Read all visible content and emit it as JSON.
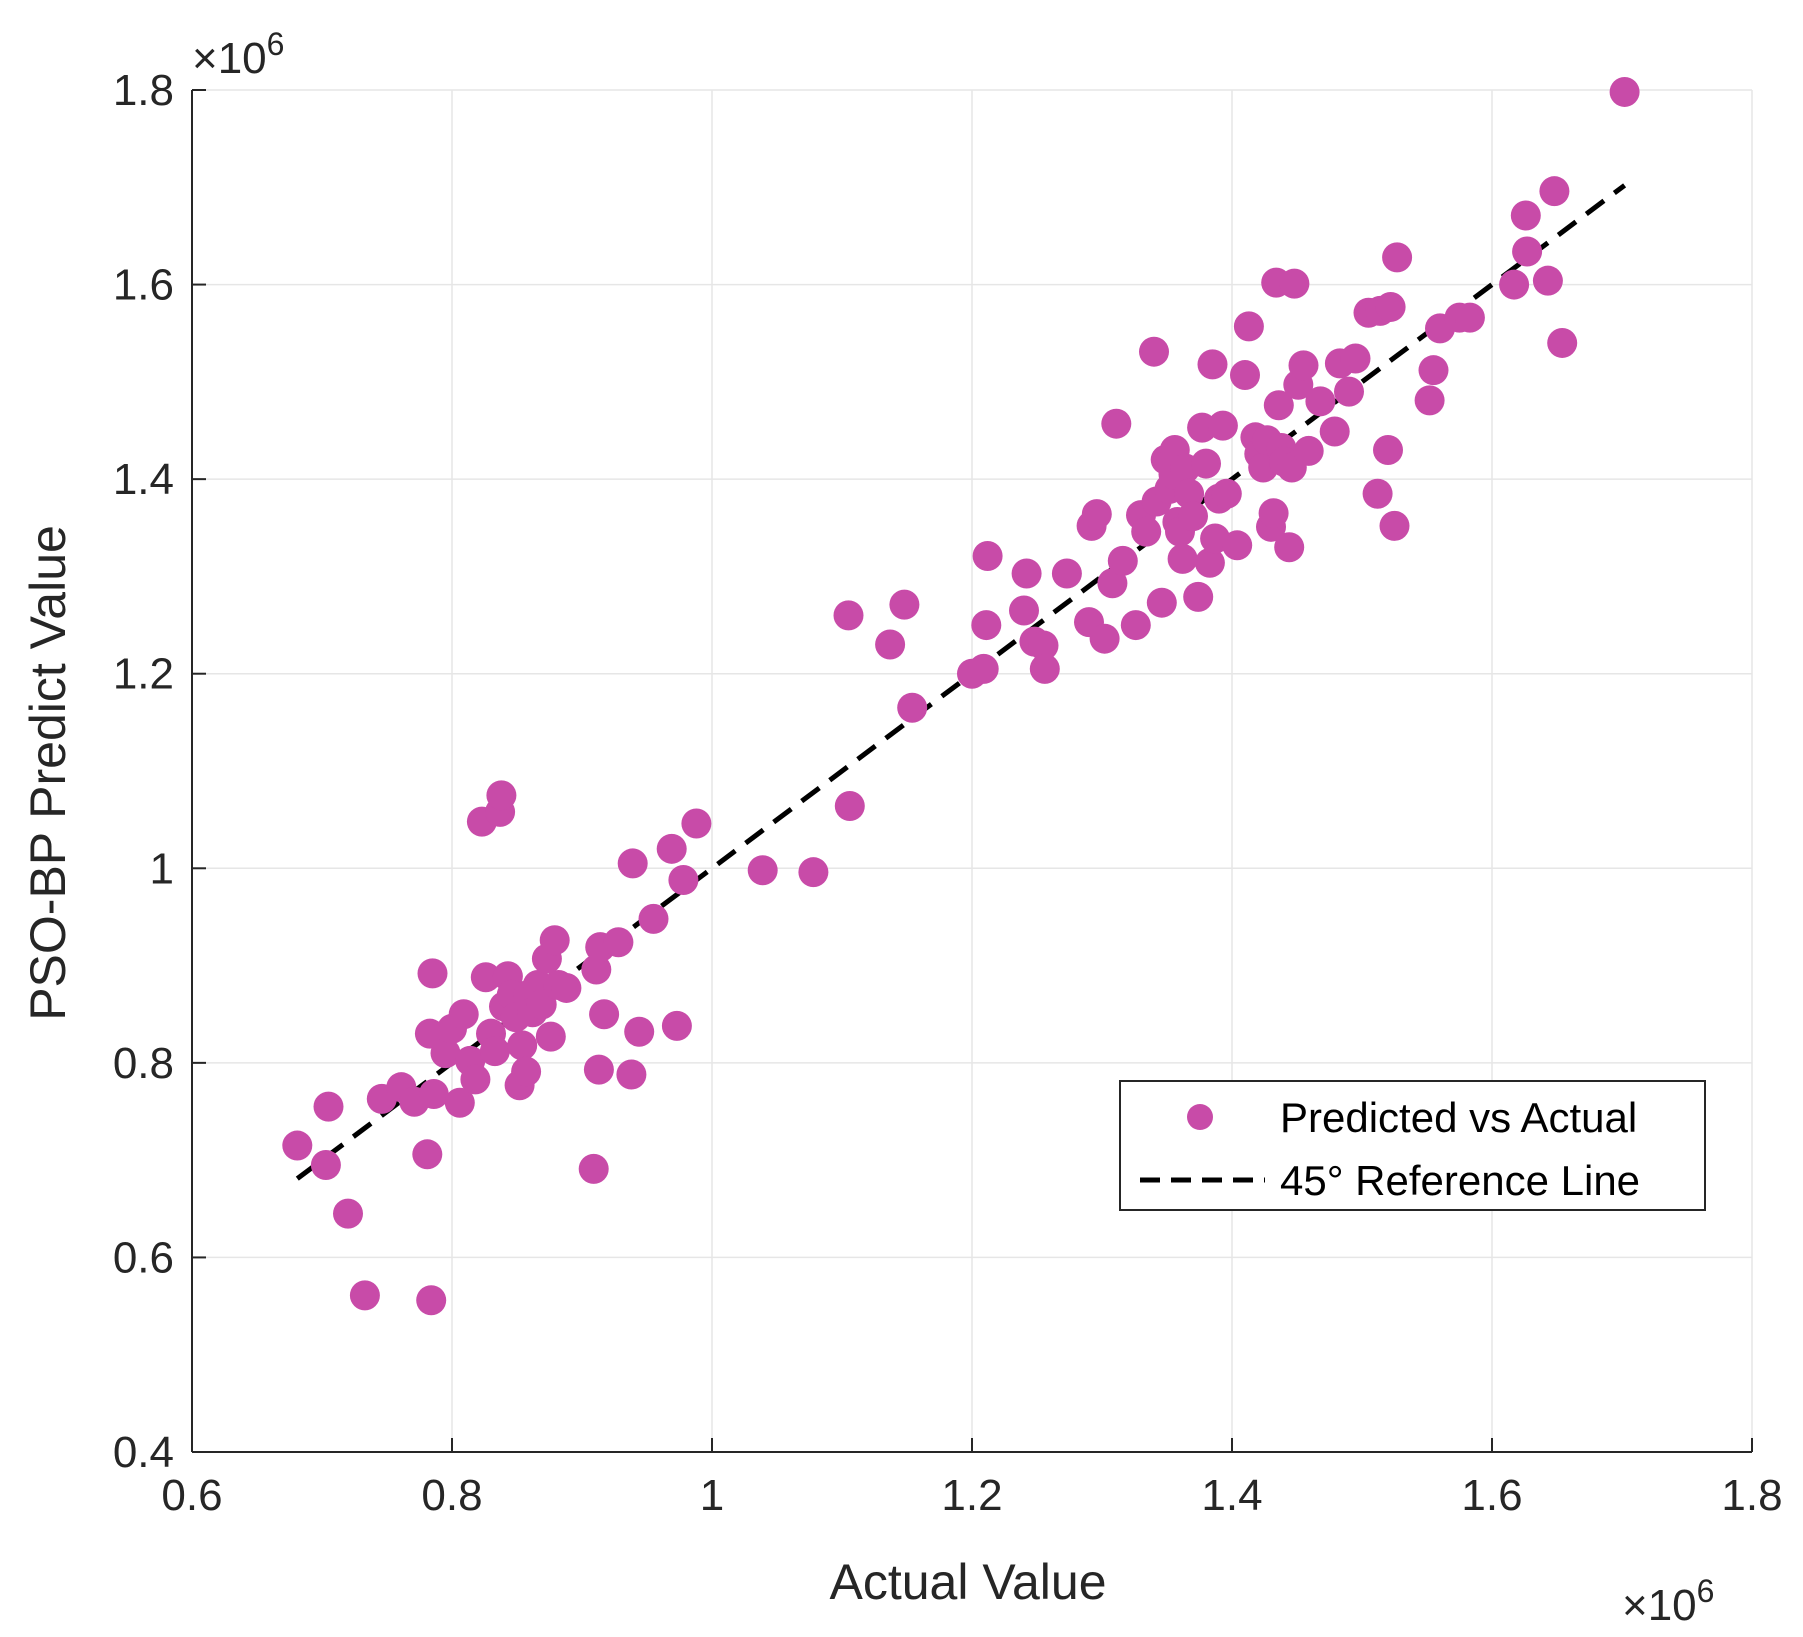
{
  "chart_data": {
    "type": "scatter",
    "title": "",
    "xlabel": "Actual Value",
    "ylabel": "PSO-BP Predict Value",
    "x_exponent": "×10",
    "x_exponent_power": "6",
    "y_exponent": "×10",
    "y_exponent_power": "6",
    "xlim": [
      0.6,
      1.8
    ],
    "ylim": [
      0.4,
      1.8
    ],
    "xticks": [
      0.6,
      0.8,
      1.0,
      1.2,
      1.4,
      1.6,
      1.8
    ],
    "xtick_labels": [
      "0.6",
      "0.8",
      "1",
      "1.2",
      "1.4",
      "1.6",
      "1.8"
    ],
    "yticks": [
      0.4,
      0.6,
      0.8,
      1.0,
      1.2,
      1.4,
      1.6,
      1.8
    ],
    "ytick_labels": [
      "0.4",
      "0.6",
      "0.8",
      "1",
      "1.2",
      "1.4",
      "1.6",
      "1.8"
    ],
    "grid": true,
    "legend_position": "bottom-right",
    "colors": {
      "points": "#C84BA8",
      "reference_line": "#000000",
      "grid": "#E6E6E6",
      "axes": "#262626"
    },
    "series": [
      {
        "name": "Predicted vs Actual",
        "kind": "scatter",
        "x": [
          0.681,
          0.705,
          0.703,
          0.72,
          0.733,
          0.746,
          0.761,
          0.771,
          0.781,
          0.783,
          0.784,
          0.785,
          0.786,
          0.795,
          0.8,
          0.806,
          0.809,
          0.814,
          0.818,
          0.823,
          0.826,
          0.83,
          0.833,
          0.837,
          0.838,
          0.84,
          0.843,
          0.846,
          0.849,
          0.852,
          0.854,
          0.857,
          0.859,
          0.862,
          0.866,
          0.869,
          0.873,
          0.876,
          0.879,
          0.882,
          0.888,
          0.909,
          0.911,
          0.913,
          0.914,
          0.917,
          0.928,
          0.938,
          0.939,
          0.944,
          0.955,
          0.969,
          0.973,
          0.978,
          0.988,
          1.039,
          1.078,
          1.105,
          1.106,
          1.137,
          1.148,
          1.154,
          1.2,
          1.209,
          1.211,
          1.212,
          1.24,
          1.242,
          1.248,
          1.255,
          1.256,
          1.273,
          1.29,
          1.292,
          1.296,
          1.302,
          1.308,
          1.311,
          1.316,
          1.326,
          1.33,
          1.334,
          1.34,
          1.342,
          1.346,
          1.349,
          1.352,
          1.355,
          1.356,
          1.358,
          1.36,
          1.362,
          1.364,
          1.367,
          1.37,
          1.374,
          1.377,
          1.38,
          1.383,
          1.385,
          1.387,
          1.39,
          1.393,
          1.396,
          1.404,
          1.41,
          1.413,
          1.418,
          1.421,
          1.424,
          1.427,
          1.43,
          1.432,
          1.434,
          1.436,
          1.438,
          1.44,
          1.444,
          1.446,
          1.448,
          1.451,
          1.455,
          1.459,
          1.468,
          1.479,
          1.483,
          1.49,
          1.495,
          1.505,
          1.512,
          1.514,
          1.52,
          1.522,
          1.525,
          1.527,
          1.552,
          1.555,
          1.56,
          1.575,
          1.583,
          1.617,
          1.626,
          1.627,
          1.643,
          1.648,
          1.654,
          1.702
        ],
        "y": [
          0.715,
          0.755,
          0.695,
          0.645,
          0.561,
          0.763,
          0.775,
          0.76,
          0.706,
          0.83,
          0.556,
          0.892,
          0.768,
          0.81,
          0.835,
          0.759,
          0.85,
          0.802,
          0.783,
          1.048,
          0.888,
          0.83,
          0.812,
          1.058,
          1.075,
          0.858,
          0.889,
          0.87,
          0.847,
          0.777,
          0.818,
          0.791,
          0.87,
          0.852,
          0.88,
          0.86,
          0.907,
          0.827,
          0.926,
          0.88,
          0.877,
          0.691,
          0.896,
          0.793,
          0.919,
          0.85,
          0.924,
          0.788,
          1.005,
          0.832,
          0.948,
          1.02,
          0.838,
          0.988,
          1.046,
          0.998,
          0.996,
          1.26,
          1.064,
          1.23,
          1.271,
          1.165,
          1.2,
          1.205,
          1.25,
          1.321,
          1.265,
          1.303,
          1.233,
          1.229,
          1.205,
          1.303,
          1.253,
          1.352,
          1.364,
          1.236,
          1.293,
          1.457,
          1.316,
          1.25,
          1.363,
          1.346,
          1.531,
          1.377,
          1.273,
          1.42,
          1.39,
          1.405,
          1.43,
          1.356,
          1.346,
          1.318,
          1.411,
          1.385,
          1.362,
          1.279,
          1.453,
          1.416,
          1.314,
          1.518,
          1.339,
          1.38,
          1.455,
          1.385,
          1.332,
          1.507,
          1.557,
          1.443,
          1.426,
          1.412,
          1.44,
          1.351,
          1.365,
          1.602,
          1.476,
          1.432,
          1.418,
          1.33,
          1.412,
          1.601,
          1.497,
          1.517,
          1.429,
          1.48,
          1.449,
          1.519,
          1.49,
          1.524,
          1.571,
          1.385,
          1.573,
          1.43,
          1.577,
          1.352,
          1.628,
          1.481,
          1.512,
          1.555,
          1.566,
          1.566,
          1.6,
          1.671,
          1.634,
          1.604,
          1.696,
          1.54,
          1.798
        ]
      },
      {
        "name": "45° Reference Line",
        "kind": "line",
        "style": "dashed",
        "x": [
          0.681,
          1.702
        ],
        "y": [
          0.681,
          1.702
        ]
      }
    ]
  }
}
